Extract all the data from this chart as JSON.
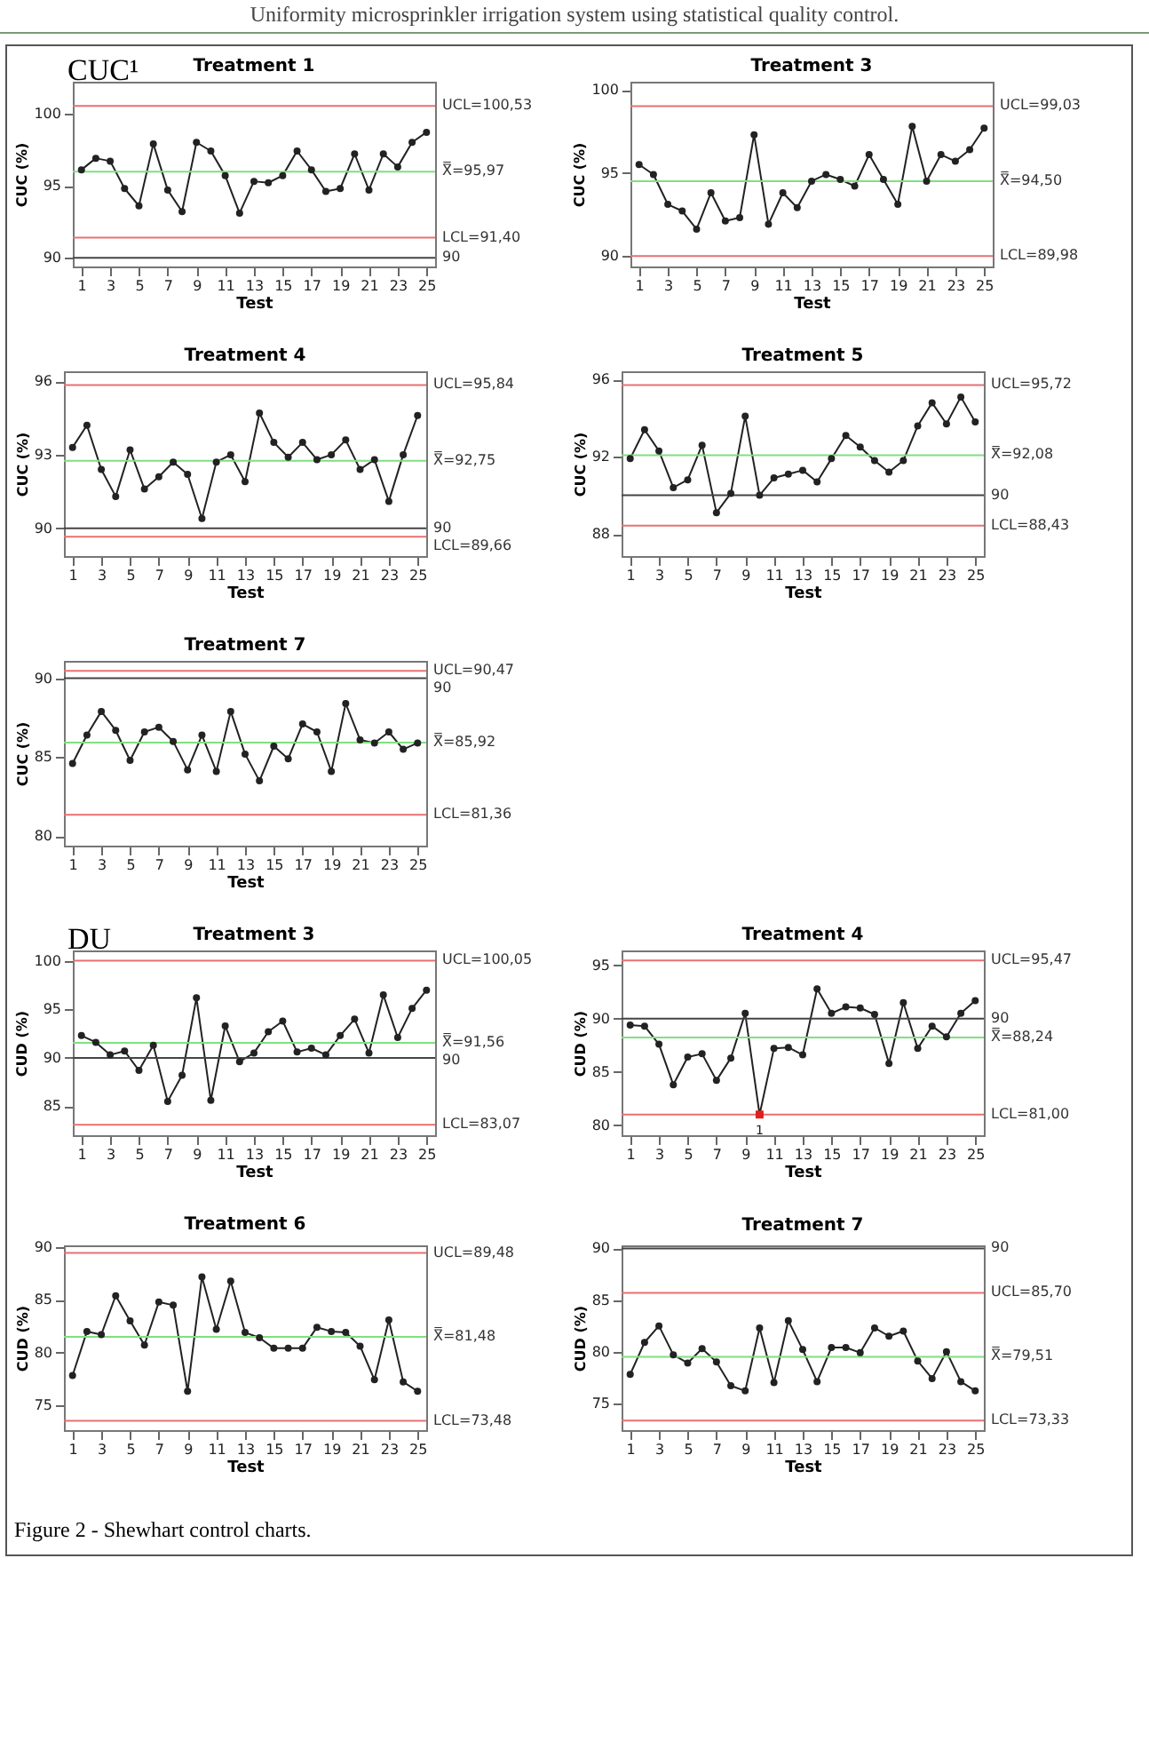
{
  "chart_data": [
    {
      "type": "line",
      "title": "Treatment 1",
      "xlabel": "Test",
      "ylabel": "CUC (%)",
      "annotations": [
        "Uniformity microsprinkler irrigation system using statistical quality control.",
        "CUC¹"
      ],
      "x": [
        1,
        2,
        3,
        4,
        5,
        6,
        7,
        8,
        9,
        10,
        11,
        12,
        13,
        14,
        15,
        16,
        17,
        18,
        19,
        20,
        21,
        22,
        23,
        24,
        25
      ],
      "xlim": [
        0.4,
        25.6
      ],
      "xticks": [
        1,
        3,
        5,
        7,
        9,
        11,
        13,
        15,
        17,
        19,
        21,
        23,
        25
      ],
      "ylim": [
        89.4,
        102.2
      ],
      "yticks": [
        90,
        95,
        100
      ],
      "marker": "circle",
      "series": [
        {
          "color": "#222222",
          "values": [
            96.1,
            96.9,
            96.7,
            94.8,
            93.6,
            97.9,
            94.7,
            93.2,
            98.0,
            97.4,
            95.7,
            93.1,
            95.3,
            95.2,
            95.7,
            97.4,
            96.1,
            94.6,
            94.8,
            97.2,
            94.7,
            97.2,
            96.3,
            98.0,
            98.7
          ]
        }
      ],
      "ref_lines": [
        {
          "axis": "y",
          "value": 100.53,
          "label": "UCL=100,53",
          "color": "#e87070"
        },
        {
          "axis": "y",
          "value": 95.97,
          "label": "X̿=95,97",
          "color": "#80e080"
        },
        {
          "axis": "y",
          "value": 91.4,
          "label": "LCL=91,40",
          "color": "#e87070"
        },
        {
          "axis": "y",
          "value": 90,
          "label": "90",
          "color": "#444444"
        }
      ]
    },
    {
      "type": "line",
      "title": "Treatment 3",
      "xlabel": "Test",
      "ylabel": "CUC (%)",
      "x": [
        1,
        2,
        3,
        4,
        5,
        6,
        7,
        8,
        9,
        10,
        11,
        12,
        13,
        14,
        15,
        16,
        17,
        18,
        19,
        20,
        21,
        22,
        23,
        24,
        25
      ],
      "xlim": [
        0.4,
        25.6
      ],
      "xticks": [
        1,
        3,
        5,
        7,
        9,
        11,
        13,
        15,
        17,
        19,
        21,
        23,
        25
      ],
      "ylim": [
        89.35,
        100.5
      ],
      "yticks": [
        90,
        95,
        100
      ],
      "marker": "circle",
      "series": [
        {
          "color": "#222222",
          "values": [
            95.5,
            94.9,
            93.1,
            92.7,
            91.6,
            93.8,
            92.1,
            92.3,
            97.3,
            91.9,
            93.8,
            92.9,
            94.5,
            94.9,
            94.6,
            94.2,
            96.1,
            94.6,
            93.1,
            97.8,
            94.5,
            96.1,
            95.7,
            96.4,
            97.7
          ]
        }
      ],
      "ref_lines": [
        {
          "axis": "y",
          "value": 99.03,
          "label": "UCL=99,03",
          "color": "#e87070"
        },
        {
          "axis": "y",
          "value": 94.5,
          "label": "X̿=94,50",
          "color": "#80e080"
        },
        {
          "axis": "y",
          "value": 89.98,
          "label": "LCL=89,98",
          "color": "#e87070"
        }
      ]
    },
    {
      "type": "line",
      "title": "Treatment 4",
      "xlabel": "Test",
      "ylabel": "CUC (%)",
      "x": [
        1,
        2,
        3,
        4,
        5,
        6,
        7,
        8,
        9,
        10,
        11,
        12,
        13,
        14,
        15,
        16,
        17,
        18,
        19,
        20,
        21,
        22,
        23,
        24,
        25
      ],
      "xlim": [
        0.4,
        25.6
      ],
      "xticks": [
        1,
        3,
        5,
        7,
        9,
        11,
        13,
        15,
        17,
        19,
        21,
        23,
        25
      ],
      "ylim": [
        88.87,
        96.4
      ],
      "yticks": [
        90,
        93,
        96
      ],
      "marker": "circle",
      "series": [
        {
          "color": "#222222",
          "values": [
            93.3,
            94.2,
            92.4,
            91.3,
            93.2,
            91.6,
            92.1,
            92.7,
            92.2,
            90.4,
            92.7,
            93.0,
            91.9,
            94.7,
            93.5,
            92.9,
            93.5,
            92.8,
            93.0,
            93.6,
            92.4,
            92.8,
            91.1,
            93.0,
            94.6
          ]
        }
      ],
      "ref_lines": [
        {
          "axis": "y",
          "value": 95.84,
          "label": "UCL=95,84",
          "color": "#e87070"
        },
        {
          "axis": "y",
          "value": 92.75,
          "label": "X̿=92,75",
          "color": "#80e080"
        },
        {
          "axis": "y",
          "value": 90,
          "label": "90",
          "color": "#444444"
        },
        {
          "axis": "y",
          "value": 89.66,
          "label": "LCL=89,66",
          "color": "#e87070"
        }
      ]
    },
    {
      "type": "line",
      "title": "Treatment 5",
      "xlabel": "Test",
      "ylabel": "CUC (%)",
      "x": [
        1,
        2,
        3,
        4,
        5,
        6,
        7,
        8,
        9,
        10,
        11,
        12,
        13,
        14,
        15,
        16,
        17,
        18,
        19,
        20,
        21,
        22,
        23,
        24,
        25
      ],
      "xlim": [
        0.4,
        25.6
      ],
      "xticks": [
        1,
        3,
        5,
        7,
        9,
        11,
        13,
        15,
        17,
        19,
        21,
        23,
        25
      ],
      "ylim": [
        86.85,
        96.43
      ],
      "yticks": [
        88,
        92,
        96
      ],
      "marker": "circle",
      "series": [
        {
          "color": "#222222",
          "values": [
            91.9,
            93.4,
            92.3,
            90.4,
            90.8,
            92.6,
            89.1,
            90.1,
            94.1,
            90.0,
            90.9,
            91.1,
            91.3,
            90.7,
            91.9,
            93.1,
            92.5,
            91.8,
            91.2,
            91.8,
            93.6,
            94.8,
            93.7,
            95.1,
            93.8
          ]
        }
      ],
      "ref_lines": [
        {
          "axis": "y",
          "value": 95.72,
          "label": "UCL=95,72",
          "color": "#e87070"
        },
        {
          "axis": "y",
          "value": 92.08,
          "label": "X̿=92,08",
          "color": "#80e080"
        },
        {
          "axis": "y",
          "value": 90,
          "label": "90",
          "color": "#444444"
        },
        {
          "axis": "y",
          "value": 88.43,
          "label": "LCL=88,43",
          "color": "#e87070"
        }
      ]
    },
    {
      "type": "line",
      "title": "Treatment 7",
      "xlabel": "Test",
      "ylabel": "CUC (%)",
      "x": [
        1,
        2,
        3,
        4,
        5,
        6,
        7,
        8,
        9,
        10,
        11,
        12,
        13,
        14,
        15,
        16,
        17,
        18,
        19,
        20,
        21,
        22,
        23,
        24,
        25
      ],
      "xlim": [
        0.4,
        25.6
      ],
      "xticks": [
        1,
        3,
        5,
        7,
        9,
        11,
        13,
        15,
        17,
        19,
        21,
        23,
        25
      ],
      "ylim": [
        79.4,
        91.1
      ],
      "yticks": [
        80,
        85,
        90
      ],
      "marker": "circle",
      "series": [
        {
          "color": "#222222",
          "values": [
            84.6,
            86.4,
            87.9,
            86.7,
            84.8,
            86.6,
            86.9,
            86.0,
            84.2,
            86.4,
            84.1,
            87.9,
            85.2,
            83.5,
            85.7,
            84.9,
            87.1,
            86.6,
            84.1,
            88.4,
            86.1,
            85.9,
            86.6,
            85.5,
            85.9
          ]
        }
      ],
      "ref_lines": [
        {
          "axis": "y",
          "value": 90.47,
          "label": "UCL=90,47",
          "color": "#e87070"
        },
        {
          "axis": "y",
          "value": 90,
          "label": "90",
          "color": "#444444"
        },
        {
          "axis": "y",
          "value": 85.92,
          "label": "X̿=85,92",
          "color": "#80e080"
        },
        {
          "axis": "y",
          "value": 81.36,
          "label": "LCL=81,36",
          "color": "#e87070"
        }
      ]
    },
    {
      "type": "line",
      "title": "Treatment 3",
      "xlabel": "Test",
      "ylabel": "CUD (%)",
      "annotations": [
        "DU"
      ],
      "x": [
        1,
        2,
        3,
        4,
        5,
        6,
        7,
        8,
        9,
        10,
        11,
        12,
        13,
        14,
        15,
        16,
        17,
        18,
        19,
        20,
        21,
        22,
        23,
        24,
        25
      ],
      "xlim": [
        0.4,
        25.6
      ],
      "xticks": [
        1,
        3,
        5,
        7,
        9,
        11,
        13,
        15,
        17,
        19,
        21,
        23,
        25
      ],
      "ylim": [
        82.0,
        101.1
      ],
      "yticks": [
        85,
        90,
        95,
        100
      ],
      "marker": "circle",
      "series": [
        {
          "color": "#222222",
          "values": [
            92.3,
            91.6,
            90.3,
            90.7,
            88.7,
            91.3,
            85.5,
            88.2,
            96.2,
            85.6,
            93.3,
            89.6,
            90.5,
            92.7,
            93.8,
            90.6,
            91.0,
            90.3,
            92.3,
            94.0,
            90.5,
            96.5,
            92.1,
            95.1,
            97.0
          ]
        }
      ],
      "ref_lines": [
        {
          "axis": "y",
          "value": 100.05,
          "label": "UCL=100,05",
          "color": "#e87070"
        },
        {
          "axis": "y",
          "value": 91.56,
          "label": "X̿=91,56",
          "color": "#80e080"
        },
        {
          "axis": "y",
          "value": 90,
          "label": "90",
          "color": "#444444"
        },
        {
          "axis": "y",
          "value": 83.07,
          "label": "LCL=83,07",
          "color": "#e87070"
        }
      ]
    },
    {
      "type": "line",
      "title": "Treatment 4",
      "xlabel": "Test",
      "ylabel": "CUD (%)",
      "annotations": [
        {
          "text": "1",
          "x": 10,
          "y": 81.0
        }
      ],
      "x": [
        1,
        2,
        3,
        4,
        5,
        6,
        7,
        8,
        9,
        10,
        11,
        12,
        13,
        14,
        15,
        16,
        17,
        18,
        19,
        20,
        21,
        22,
        23,
        24,
        25
      ],
      "xlim": [
        0.4,
        25.6
      ],
      "xticks": [
        1,
        3,
        5,
        7,
        9,
        11,
        13,
        15,
        17,
        19,
        21,
        23,
        25
      ],
      "ylim": [
        79.06,
        96.4
      ],
      "yticks": [
        80,
        85,
        90,
        95
      ],
      "marker": "circle",
      "series": [
        {
          "color": "#222222",
          "values": [
            89.4,
            89.3,
            87.6,
            83.8,
            86.4,
            86.7,
            84.2,
            86.3,
            90.5,
            81.0,
            87.2,
            87.3,
            86.6,
            92.8,
            90.5,
            91.1,
            91.0,
            90.4,
            85.8,
            91.5,
            87.2,
            89.3,
            88.3,
            90.5,
            91.7
          ]
        },
        {
          "type": "scatter",
          "marker": "square",
          "color": "#e02020",
          "x": [
            10
          ],
          "values": [
            81.0
          ]
        }
      ],
      "ref_lines": [
        {
          "axis": "y",
          "value": 95.47,
          "label": "UCL=95,47",
          "color": "#e87070"
        },
        {
          "axis": "y",
          "value": 90,
          "label": "90",
          "color": "#444444"
        },
        {
          "axis": "y",
          "value": 88.24,
          "label": "X̿=88,24",
          "color": "#80e080"
        },
        {
          "axis": "y",
          "value": 81.0,
          "label": "LCL=81,00",
          "color": "#e87070"
        }
      ]
    },
    {
      "type": "line",
      "title": "Treatment 6",
      "xlabel": "Test",
      "ylabel": "CUD (%)",
      "x": [
        1,
        2,
        3,
        4,
        5,
        6,
        7,
        8,
        9,
        10,
        11,
        12,
        13,
        14,
        15,
        16,
        17,
        18,
        19,
        20,
        21,
        22,
        23,
        24,
        25
      ],
      "xlim": [
        0.4,
        25.6
      ],
      "xticks": [
        1,
        3,
        5,
        7,
        9,
        11,
        13,
        15,
        17,
        19,
        21,
        23,
        25
      ],
      "ylim": [
        72.6,
        90.2
      ],
      "yticks": [
        75,
        80,
        85,
        90
      ],
      "marker": "circle",
      "series": [
        {
          "color": "#222222",
          "values": [
            77.8,
            82.0,
            81.7,
            85.4,
            83.0,
            80.7,
            84.8,
            84.5,
            76.3,
            87.2,
            82.2,
            86.8,
            81.9,
            81.4,
            80.4,
            80.4,
            80.4,
            82.4,
            82.0,
            81.9,
            80.6,
            77.4,
            83.1,
            77.2,
            76.3
          ]
        }
      ],
      "ref_lines": [
        {
          "axis": "y",
          "value": 89.48,
          "label": "UCL=89,48",
          "color": "#e87070"
        },
        {
          "axis": "y",
          "value": 81.48,
          "label": "X̿=81,48",
          "color": "#80e080"
        },
        {
          "axis": "y",
          "value": 73.48,
          "label": "LCL=73,48",
          "color": "#e87070"
        }
      ]
    },
    {
      "type": "line",
      "title": "Treatment 7",
      "xlabel": "Test",
      "ylabel": "CUD (%)",
      "annotations": [
        "Figure 2 - Shewhart control charts."
      ],
      "x": [
        1,
        2,
        3,
        4,
        5,
        6,
        7,
        8,
        9,
        10,
        11,
        12,
        13,
        14,
        15,
        16,
        17,
        18,
        19,
        20,
        21,
        22,
        23,
        24,
        25
      ],
      "xlim": [
        0.4,
        25.6
      ],
      "xticks": [
        1,
        3,
        5,
        7,
        9,
        11,
        13,
        15,
        17,
        19,
        21,
        23,
        25
      ],
      "ylim": [
        72.4,
        90.3
      ],
      "yticks": [
        75,
        80,
        85,
        90
      ],
      "marker": "circle",
      "series": [
        {
          "color": "#222222",
          "values": [
            77.8,
            80.9,
            82.5,
            79.7,
            78.9,
            80.3,
            79.0,
            76.7,
            76.2,
            82.3,
            77.0,
            83.0,
            80.2,
            77.1,
            80.4,
            80.4,
            79.9,
            82.3,
            81.5,
            82.0,
            79.1,
            77.4,
            80.0,
            77.1,
            76.2
          ]
        }
      ],
      "ref_lines": [
        {
          "axis": "y",
          "value": 90,
          "label": "90",
          "color": "#444444"
        },
        {
          "axis": "y",
          "value": 85.7,
          "label": "UCL=85,70",
          "color": "#e87070"
        },
        {
          "axis": "y",
          "value": 79.51,
          "label": "X̿=79,51",
          "color": "#80e080"
        },
        {
          "axis": "y",
          "value": 73.33,
          "label": "LCL=73,33",
          "color": "#e87070"
        }
      ]
    }
  ]
}
